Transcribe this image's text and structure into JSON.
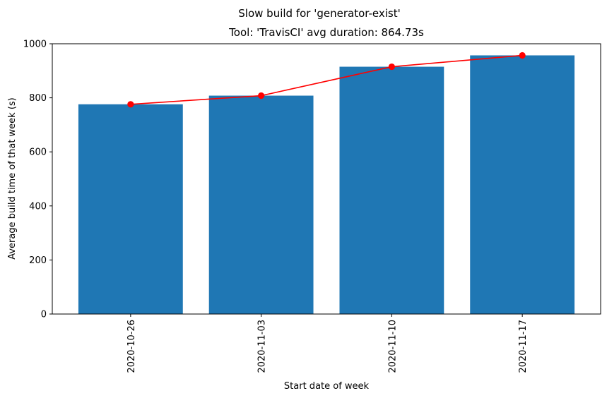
{
  "figure": {
    "suptitle": "Slow build for 'generator-exist'"
  },
  "chart_data": {
    "type": "bar",
    "title": "Tool: 'TravisCI' avg duration: 864.73s",
    "xlabel": "Start date of week",
    "ylabel": "Average build time of that week (s)",
    "categories": [
      "2020-10-26",
      "2020-11-03",
      "2020-11-10",
      "2020-11-17"
    ],
    "values": [
      776,
      808,
      915,
      957
    ],
    "line_values": [
      776,
      808,
      915,
      957
    ],
    "ylim": [
      0,
      1000
    ],
    "yticks": [
      0,
      200,
      400,
      600,
      800,
      1000
    ],
    "bar_color": "#1f77b4",
    "line_color": "#ff0000",
    "grid": false,
    "legend": "none"
  }
}
